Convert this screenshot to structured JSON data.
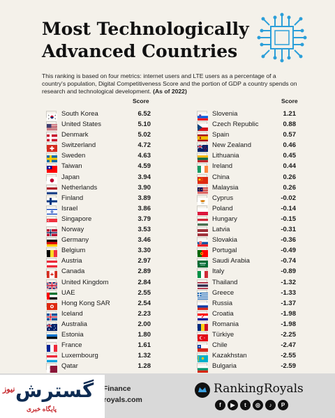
{
  "header": {
    "title_line1": "Most Technologically",
    "title_line2": "Advanced Countries",
    "icon": "circuit-chip-icon",
    "description": "This ranking is based on four metrics: internet users and LTE users as a percentage of a country's population, Digital Competitiveness Score and the portion of GDP a country spends on research and technological development.",
    "as_of": "(As of 2022)"
  },
  "score_header": "Score",
  "left_column": [
    {
      "country": "South Korea",
      "score": "6.52",
      "flag": "kr"
    },
    {
      "country": "United States",
      "score": "5.10",
      "flag": "us"
    },
    {
      "country": "Denmark",
      "score": "5.02",
      "flag": "dk"
    },
    {
      "country": "Switzerland",
      "score": "4.72",
      "flag": "ch"
    },
    {
      "country": "Sweden",
      "score": "4.63",
      "flag": "se"
    },
    {
      "country": "Taiwan",
      "score": "4.59",
      "flag": "tw"
    },
    {
      "country": "Japan",
      "score": "3.94",
      "flag": "jp"
    },
    {
      "country": "Netherlands",
      "score": "3.90",
      "flag": "nl"
    },
    {
      "country": "Finland",
      "score": "3.89",
      "flag": "fi"
    },
    {
      "country": "Israel",
      "score": "3.86",
      "flag": "il"
    },
    {
      "country": "Singapore",
      "score": "3.79",
      "flag": "sg"
    },
    {
      "country": "Norway",
      "score": "3.53",
      "flag": "no"
    },
    {
      "country": "Germany",
      "score": "3.46",
      "flag": "de"
    },
    {
      "country": "Belgium",
      "score": "3.30",
      "flag": "be"
    },
    {
      "country": "Austria",
      "score": "2.97",
      "flag": "at"
    },
    {
      "country": "Canada",
      "score": "2.89",
      "flag": "ca"
    },
    {
      "country": "United Kingdom",
      "score": "2.84",
      "flag": "gb"
    },
    {
      "country": "UAE",
      "score": "2.55",
      "flag": "ae"
    },
    {
      "country": "Hong Kong SAR",
      "score": "2.54",
      "flag": "hk"
    },
    {
      "country": "Iceland",
      "score": "2.23",
      "flag": "is"
    },
    {
      "country": "Australia",
      "score": "2.00",
      "flag": "au"
    },
    {
      "country": "Estonia",
      "score": "1.80",
      "flag": "ee"
    },
    {
      "country": "France",
      "score": "1.61",
      "flag": "fr"
    },
    {
      "country": "Luxembourg",
      "score": "1.32",
      "flag": "lu"
    },
    {
      "country": "Qatar",
      "score": "1.28",
      "flag": "qa"
    }
  ],
  "right_column": [
    {
      "country": "Slovenia",
      "score": "1.21",
      "flag": "si"
    },
    {
      "country": "Czech Republic",
      "score": "0.88",
      "flag": "cz"
    },
    {
      "country": "Spain",
      "score": "0.57",
      "flag": "es"
    },
    {
      "country": "New Zealand",
      "score": "0.46",
      "flag": "nz"
    },
    {
      "country": "Lithuania",
      "score": "0.45",
      "flag": "lt"
    },
    {
      "country": "Ireland",
      "score": "0.44",
      "flag": "ie"
    },
    {
      "country": "China",
      "score": "0.26",
      "flag": "cn"
    },
    {
      "country": "Malaysia",
      "score": "0.26",
      "flag": "my"
    },
    {
      "country": "Cyprus",
      "score": "-0.02",
      "flag": "cy"
    },
    {
      "country": "Poland",
      "score": "-0.14",
      "flag": "pl"
    },
    {
      "country": "Hungary",
      "score": "-0.15",
      "flag": "hu"
    },
    {
      "country": "Latvia",
      "score": "-0.31",
      "flag": "lv"
    },
    {
      "country": "Slovakia",
      "score": "-0.36",
      "flag": "sk"
    },
    {
      "country": "Portugal",
      "score": "-0.49",
      "flag": "pt"
    },
    {
      "country": "Saudi Arabia",
      "score": "-0.74",
      "flag": "sa"
    },
    {
      "country": "Italy",
      "score": "-0.89",
      "flag": "it"
    },
    {
      "country": "Thailand",
      "score": "-1.32",
      "flag": "th"
    },
    {
      "country": "Greece",
      "score": "-1.33",
      "flag": "gr"
    },
    {
      "country": "Russia",
      "score": "-1.37",
      "flag": "ru"
    },
    {
      "country": "Croatia",
      "score": "-1.98",
      "flag": "hr"
    },
    {
      "country": "Romania",
      "score": "-1.98",
      "flag": "ro"
    },
    {
      "country": "Türkiye",
      "score": "-2.25",
      "flag": "tr"
    },
    {
      "country": "Chile",
      "score": "-2.47",
      "flag": "cl"
    },
    {
      "country": "Kazakhstan",
      "score": "-2.55",
      "flag": "kz"
    },
    {
      "country": "Bulgaria",
      "score": "-2.59",
      "flag": "bg"
    }
  ],
  "footer": {
    "source_fragment": "l Finance",
    "site_fragment": "groyals.com",
    "brand": "RankingRoyals",
    "socials": [
      "facebook-icon",
      "youtube-icon",
      "twitter-icon",
      "instagram-icon",
      "tiktok-icon",
      "pinterest-icon"
    ],
    "social_glyphs": [
      "f",
      "▶",
      "t",
      "◎",
      "♪",
      "P"
    ]
  },
  "watermark": {
    "main": "گسترش",
    "prefix": "نیوز",
    "sub": "پایگاه خبری"
  }
}
